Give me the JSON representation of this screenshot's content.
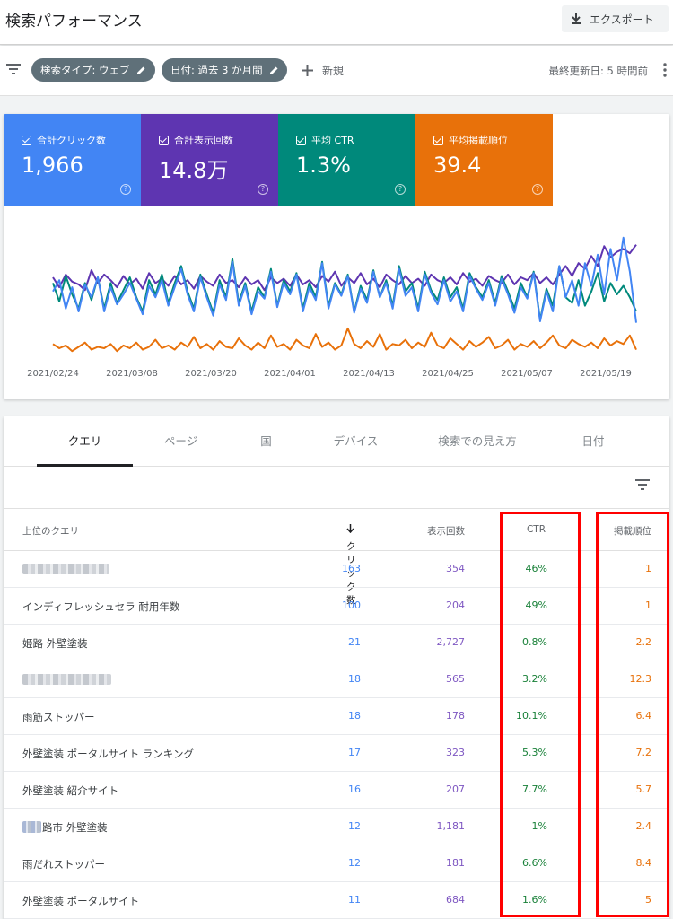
{
  "header": {
    "title": "検索パフォーマンス",
    "export_label": "エクスポート"
  },
  "filters": {
    "type_chip": "検索タイプ: ウェブ",
    "date_chip": "日付: 過去 3 か月間",
    "new_label": "新規",
    "last_updated": "最終更新日: 5 時間前"
  },
  "metrics": [
    {
      "label": "合計クリック数",
      "value": "1,966",
      "color": "#4285f4"
    },
    {
      "label": "合計表示回数",
      "value": "14.8万",
      "color": "#5e35b1"
    },
    {
      "label": "平均 CTR",
      "value": "1.3%",
      "color": "#00897b"
    },
    {
      "label": "平均掲載順位",
      "value": "39.4",
      "color": "#e8710a"
    }
  ],
  "chart_data": {
    "type": "line",
    "title": "",
    "xlabel": "",
    "ylabel": "",
    "x_start": "2021/02/22",
    "x_end": "2021/05/23",
    "x_tick_labels": [
      "2021/02/24",
      "2021/03/08",
      "2021/03/20",
      "2021/04/01",
      "2021/04/13",
      "2021/04/25",
      "2021/05/07",
      "2021/05/19"
    ],
    "y_axis_shown": false,
    "ylim": [
      0,
      100
    ],
    "grid": false,
    "series": [
      {
        "name": "合計クリック数",
        "color": "#4285f4",
        "values": [
          52,
          60,
          40,
          55,
          38,
          57,
          48,
          62,
          38,
          55,
          43,
          50,
          58,
          47,
          36,
          56,
          48,
          60,
          42,
          55,
          68,
          50,
          38,
          62,
          48,
          35,
          57,
          46,
          73,
          42,
          56,
          36,
          52,
          47,
          66,
          41,
          58,
          50,
          64,
          38,
          55,
          46,
          72,
          40,
          57,
          49,
          63,
          37,
          54,
          44,
          66,
          48,
          58,
          40,
          68,
          49,
          55,
          38,
          64,
          51,
          43,
          60,
          45,
          52,
          38,
          63,
          54,
          46,
          58,
          42,
          61,
          50,
          37,
          55,
          47,
          65,
          31,
          52,
          38,
          70,
          48,
          60,
          42,
          72,
          56,
          78,
          50,
          82,
          60,
          90,
          66,
          30
        ]
      },
      {
        "name": "合計表示回数",
        "color": "#5e35b1",
        "values": [
          62,
          55,
          64,
          59,
          57,
          53,
          67,
          58,
          64,
          60,
          55,
          63,
          57,
          61,
          54,
          65,
          58,
          61,
          56,
          63,
          57,
          60,
          54,
          63,
          59,
          56,
          64,
          58,
          60,
          55,
          62,
          57,
          60,
          53,
          62,
          58,
          61,
          56,
          64,
          57,
          60,
          55,
          63,
          59,
          66,
          56,
          62,
          58,
          65,
          57,
          61,
          55,
          64,
          60,
          57,
          63,
          58,
          61,
          56,
          64,
          60,
          58,
          62,
          57,
          65,
          59,
          61,
          56,
          63,
          60,
          58,
          64,
          57,
          62,
          60,
          65,
          58,
          62,
          57,
          64,
          70,
          63,
          72,
          68,
          77,
          70,
          84,
          76,
          80,
          82,
          79,
          85
        ]
      },
      {
        "name": "平均 CTR",
        "color": "#00897b",
        "values": [
          58,
          45,
          63,
          50,
          40,
          58,
          46,
          62,
          40,
          58,
          44,
          53,
          62,
          48,
          38,
          60,
          50,
          64,
          44,
          58,
          70,
          52,
          40,
          64,
          50,
          37,
          60,
          48,
          75,
          44,
          58,
          38,
          55,
          48,
          68,
          42,
          60,
          52,
          65,
          40,
          58,
          48,
          73,
          42,
          58,
          50,
          64,
          38,
          56,
          46,
          67,
          48,
          60,
          42,
          70,
          52,
          58,
          40,
          66,
          53,
          46,
          62,
          48,
          55,
          40,
          65,
          55,
          48,
          60,
          44,
          63,
          52,
          40,
          58,
          48,
          66,
          32,
          54,
          42,
          70,
          48,
          44,
          60,
          42,
          52,
          65,
          45,
          58,
          50,
          56,
          48,
          38
        ]
      },
      {
        "name": "平均掲載順位",
        "color": "#e8710a",
        "values": [
          15,
          12,
          14,
          10,
          13,
          16,
          11,
          13,
          12,
          15,
          10,
          14,
          12,
          16,
          11,
          13,
          18,
          12,
          14,
          11,
          16,
          13,
          20,
          12,
          15,
          11,
          17,
          13,
          12,
          19,
          14,
          11,
          16,
          12,
          21,
          13,
          15,
          11,
          18,
          14,
          12,
          22,
          13,
          16,
          11,
          14,
          26,
          15,
          12,
          17,
          13,
          22,
          11,
          15,
          14,
          18,
          12,
          16,
          13,
          23,
          14,
          12,
          19,
          15,
          11,
          17,
          13,
          16,
          20,
          12,
          14,
          18,
          11,
          15,
          13,
          17,
          12,
          16,
          21,
          14,
          12,
          18,
          15,
          13,
          16,
          12,
          19,
          14,
          17,
          15,
          21,
          11
        ]
      }
    ]
  },
  "tabs": [
    "クエリ",
    "ページ",
    "国",
    "デバイス",
    "検索での見え方",
    "日付"
  ],
  "table": {
    "headers": {
      "query": "上位のクエリ",
      "clicks": "クリック数",
      "impressions": "表示回数",
      "ctr": "CTR",
      "position": "掲載順位"
    },
    "rows": [
      {
        "query": "",
        "clicks": "163",
        "impressions": "354",
        "ctr": "46%",
        "position": "1"
      },
      {
        "query": "インディフレッシュセラ 耐用年数",
        "clicks": "100",
        "impressions": "204",
        "ctr": "49%",
        "position": "1"
      },
      {
        "query": "姫路 外壁塗装",
        "clicks": "21",
        "impressions": "2,727",
        "ctr": "0.8%",
        "position": "2.2"
      },
      {
        "query": "",
        "clicks": "18",
        "impressions": "565",
        "ctr": "3.2%",
        "position": "12.3"
      },
      {
        "query": "雨筋ストッパー",
        "clicks": "18",
        "impressions": "178",
        "ctr": "10.1%",
        "position": "6.4"
      },
      {
        "query": "外壁塗装 ポータルサイト ランキング",
        "clicks": "17",
        "impressions": "323",
        "ctr": "5.3%",
        "position": "7.2"
      },
      {
        "query": "外壁塗装 紹介サイト",
        "clicks": "16",
        "impressions": "207",
        "ctr": "7.7%",
        "position": "5.7"
      },
      {
        "query": "路市 外壁塗装",
        "clicks": "12",
        "impressions": "1,181",
        "ctr": "1%",
        "position": "2.4"
      },
      {
        "query": "雨だれストッパー",
        "clicks": "12",
        "impressions": "181",
        "ctr": "6.6%",
        "position": "8.4"
      },
      {
        "query": "外壁塗装 ポータルサイト",
        "clicks": "11",
        "impressions": "684",
        "ctr": "1.6%",
        "position": "5"
      }
    ]
  }
}
